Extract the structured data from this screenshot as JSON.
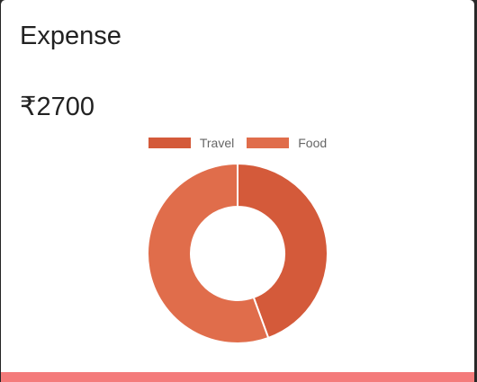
{
  "card": {
    "title": "Expense",
    "amount": "₹2700",
    "accent_bar_color": "#f47b7b"
  },
  "chart_data": {
    "type": "pie",
    "style": "doughnut",
    "legend_placement": "top",
    "labels": [
      "Travel",
      "Food"
    ],
    "values": [
      1200,
      1500
    ],
    "colors": [
      "#d45a3a",
      "#e06d4b"
    ]
  }
}
